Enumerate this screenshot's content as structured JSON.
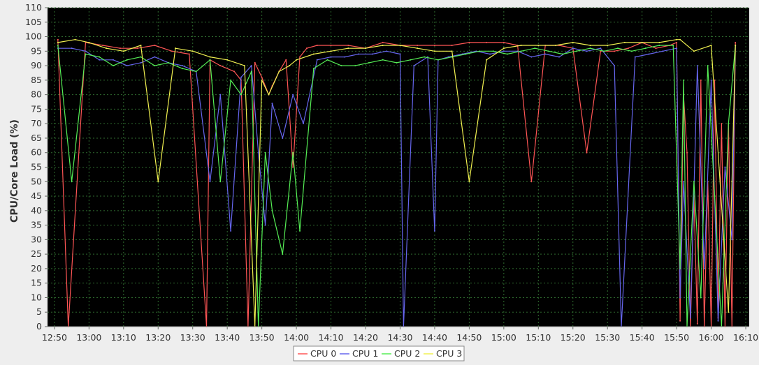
{
  "chart_data": {
    "type": "line",
    "title": "",
    "ylabel": "CPU/Core Load (%)",
    "xlabel": "",
    "ylim": [
      0,
      110
    ],
    "xlim": [
      "12:48",
      "16:11"
    ],
    "grid": true,
    "background": "#000000",
    "grid_color": "#2f6b2f",
    "legend_position": "bottom-center",
    "y_ticks": [
      "0",
      "5",
      "10",
      "15",
      "20",
      "25",
      "30",
      "35",
      "40",
      "45",
      "50",
      "55",
      "60",
      "65",
      "70",
      "75",
      "80",
      "85",
      "90",
      "95",
      "100",
      "105",
      "110"
    ],
    "x_ticks": [
      "12:50",
      "13:00",
      "13:10",
      "13:20",
      "13:30",
      "13:40",
      "13:50",
      "14:00",
      "14:10",
      "14:20",
      "14:30",
      "14:40",
      "14:50",
      "15:00",
      "15:10",
      "15:20",
      "15:30",
      "15:40",
      "15:50",
      "16:00",
      "16:10"
    ],
    "series": [
      {
        "name": "CPU 0",
        "color": "#ff5555",
        "x": [
          "12:51",
          "12:54",
          "12:59",
          "13:04",
          "13:09",
          "13:14",
          "13:19",
          "13:24",
          "13:29",
          "13:34",
          "13:35",
          "13:38",
          "13:42",
          "13:44",
          "13:46",
          "13:48",
          "13:50",
          "13:52",
          "13:53",
          "13:55",
          "13:57",
          "13:59",
          "14:01",
          "14:03",
          "14:06",
          "14:10",
          "14:15",
          "14:20",
          "14:25",
          "14:30",
          "14:35",
          "14:40",
          "14:45",
          "14:50",
          "14:55",
          "15:00",
          "15:04",
          "15:08",
          "15:12",
          "15:16",
          "15:20",
          "15:24",
          "15:28",
          "15:32",
          "15:36",
          "15:40",
          "15:44",
          "15:48",
          "15:50",
          "15:51",
          "15:52",
          "15:53",
          "15:54",
          "15:55",
          "15:56",
          "15:57",
          "15:58",
          "15:59",
          "16:00",
          "16:01",
          "16:02",
          "16:03",
          "16:04",
          "16:05",
          "16:06",
          "16:07"
        ],
        "values": [
          99,
          0,
          98,
          97,
          96,
          96,
          97,
          95,
          94,
          0,
          92,
          90,
          88,
          85,
          0,
          91,
          86,
          80,
          83,
          88,
          92,
          55,
          93,
          96,
          97,
          97,
          97,
          96,
          98,
          97,
          97,
          97,
          97,
          98,
          98,
          98,
          97,
          50,
          97,
          97,
          96,
          60,
          95,
          95,
          96,
          98,
          96,
          97,
          98,
          2,
          80,
          60,
          0,
          45,
          1,
          85,
          0,
          50,
          0,
          85,
          3,
          70,
          0,
          70,
          0,
          98
        ]
      },
      {
        "name": "CPU 1",
        "color": "#6666ee",
        "x": [
          "12:51",
          "12:55",
          "12:59",
          "13:03",
          "13:07",
          "13:11",
          "13:15",
          "13:19",
          "13:23",
          "13:27",
          "13:31",
          "13:35",
          "13:38",
          "13:41",
          "13:44",
          "13:47",
          "13:49",
          "13:51",
          "13:53",
          "13:56",
          "13:59",
          "14:02",
          "14:06",
          "14:10",
          "14:14",
          "14:18",
          "14:22",
          "14:26",
          "14:30",
          "14:31",
          "14:34",
          "14:38",
          "14:40",
          "14:41",
          "14:44",
          "14:48",
          "14:52",
          "14:56",
          "15:00",
          "15:04",
          "15:08",
          "15:12",
          "15:16",
          "15:20",
          "15:24",
          "15:28",
          "15:32",
          "15:34",
          "15:38",
          "15:42",
          "15:46",
          "15:50",
          "15:51",
          "15:52",
          "15:54",
          "15:56",
          "15:58",
          "16:00",
          "16:02",
          "16:04",
          "16:06",
          "16:07"
        ],
        "values": [
          96,
          96,
          95,
          92,
          92,
          90,
          91,
          93,
          91,
          90,
          88,
          50,
          80,
          33,
          86,
          90,
          60,
          35,
          77,
          65,
          80,
          70,
          92,
          93,
          93,
          94,
          94,
          95,
          94,
          0,
          90,
          93,
          33,
          92,
          93,
          94,
          95,
          94,
          95,
          95,
          93,
          94,
          93,
          96,
          95,
          96,
          90,
          0,
          93,
          94,
          95,
          96,
          10,
          50,
          3,
          90,
          20,
          85,
          2,
          55,
          30,
          97
        ]
      },
      {
        "name": "CPU 2",
        "color": "#55ee55",
        "x": [
          "12:51",
          "12:55",
          "12:59",
          "13:03",
          "13:07",
          "13:11",
          "13:15",
          "13:19",
          "13:23",
          "13:27",
          "13:31",
          "13:35",
          "13:38",
          "13:41",
          "13:44",
          "13:47",
          "13:49",
          "13:51",
          "13:53",
          "13:56",
          "13:59",
          "14:01",
          "14:05",
          "14:09",
          "14:13",
          "14:17",
          "14:21",
          "14:25",
          "14:29",
          "14:33",
          "14:37",
          "14:41",
          "14:45",
          "14:49",
          "14:53",
          "14:57",
          "15:01",
          "15:05",
          "15:09",
          "15:13",
          "15:17",
          "15:21",
          "15:25",
          "15:29",
          "15:33",
          "15:37",
          "15:41",
          "15:45",
          "15:49",
          "15:51",
          "15:52",
          "15:53",
          "15:55",
          "15:57",
          "15:59",
          "16:01",
          "16:03",
          "16:05",
          "16:07"
        ],
        "values": [
          97,
          50,
          94,
          93,
          90,
          92,
          93,
          90,
          91,
          89,
          88,
          92,
          50,
          85,
          80,
          88,
          0,
          60,
          40,
          25,
          60,
          33,
          89,
          92,
          90,
          90,
          91,
          92,
          91,
          92,
          93,
          92,
          93,
          94,
          95,
          95,
          94,
          95,
          96,
          95,
          94,
          95,
          96,
          95,
          96,
          95,
          96,
          97,
          97,
          20,
          85,
          0,
          50,
          10,
          90,
          45,
          0,
          70,
          97
        ]
      },
      {
        "name": "CPU 3",
        "color": "#f0f050",
        "x": [
          "12:51",
          "12:56",
          "13:00",
          "13:05",
          "13:10",
          "13:15",
          "13:20",
          "13:25",
          "13:30",
          "13:35",
          "13:40",
          "13:45",
          "13:48",
          "13:50",
          "13:52",
          "13:55",
          "13:58",
          "14:00",
          "14:05",
          "14:10",
          "14:15",
          "14:20",
          "14:25",
          "14:30",
          "14:35",
          "14:40",
          "14:45",
          "14:50",
          "14:55",
          "15:00",
          "15:05",
          "15:10",
          "15:15",
          "15:20",
          "15:25",
          "15:30",
          "15:35",
          "15:40",
          "15:45",
          "15:50",
          "15:51",
          "15:55",
          "16:00",
          "16:05",
          "16:06",
          "16:07"
        ],
        "values": [
          98,
          99,
          98,
          96,
          95,
          97,
          50,
          96,
          95,
          93,
          92,
          90,
          0,
          85,
          80,
          88,
          90,
          92,
          94,
          95,
          96,
          96,
          97,
          97,
          96,
          95,
          95,
          50,
          92,
          96,
          97,
          97,
          97,
          98,
          97,
          97,
          98,
          98,
          98,
          99,
          99,
          95,
          97,
          5,
          50,
          97
        ]
      }
    ]
  }
}
